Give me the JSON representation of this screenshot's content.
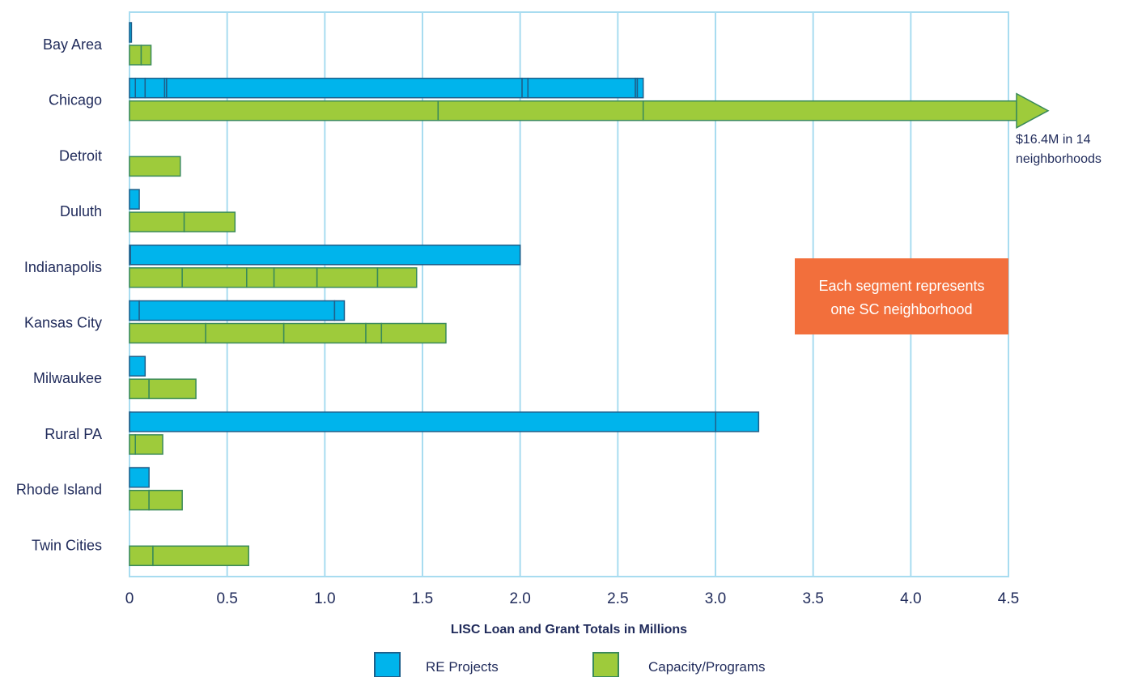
{
  "chart_data": {
    "type": "bar",
    "orientation": "horizontal",
    "stacked": true,
    "xlabel": "LISC Loan and Grant Totals in Millions",
    "xlim": [
      0,
      4.5
    ],
    "xticks": [
      "0",
      "0.5",
      "1.0",
      "1.5",
      "2.0",
      "2.5",
      "3.0",
      "3.5",
      "4.0",
      "4.5"
    ],
    "grid": "vertical",
    "categories": [
      "Bay Area",
      "Chicago",
      "Detroit",
      "Duluth",
      "Indianapolis",
      "Kansas City",
      "Milwaukee",
      "Rural PA",
      "Rhode Island",
      "Twin Cities"
    ],
    "series": [
      {
        "name": "RE Projects",
        "color": "#00b4ec",
        "segments": [
          [
            0.01
          ],
          [
            0.03,
            0.05,
            0.1,
            0.01,
            1.82,
            0.03,
            0.55,
            0.01,
            0.03
          ],
          [],
          [
            0.05
          ],
          [
            0.005,
            1.995
          ],
          [
            0.05,
            1.0,
            0.05
          ],
          [
            0.08
          ],
          [
            0.001,
            3.0,
            0.22
          ],
          [
            0.1
          ],
          []
        ]
      },
      {
        "name": "Capacity/Programs",
        "color": "#9ecb3b",
        "segments": [
          [
            0.06,
            0.05
          ],
          [
            1.58,
            1.05,
            13.77
          ],
          [
            0.26
          ],
          [
            0.28,
            0.26
          ],
          [
            0.27,
            0.33,
            0.14,
            0.22,
            0.31,
            0.2
          ],
          [
            0.39,
            0.4,
            0.42,
            0.08,
            0.33
          ],
          [
            0.1,
            0.24
          ],
          [
            0.03,
            0.14
          ],
          [
            0.1,
            0.17
          ],
          [
            0.12,
            0.49
          ]
        ]
      }
    ],
    "overflow_note": {
      "category": "Chicago",
      "series": "Capacity/Programs",
      "line1": "$16.4M in 14",
      "line2": "neighborhoods"
    },
    "callout": {
      "line1": "Each segment represents",
      "line2": "one SC neighborhood",
      "color": "#f26f3c"
    },
    "legend": {
      "placement": "bottom-center",
      "items": [
        "RE Projects",
        "Capacity/Programs"
      ]
    },
    "colors": {
      "grid": "#a8dcf0",
      "frame": "#a8dcf0",
      "text": "#1f2a5a",
      "blue_stroke": "#1f5f8a",
      "green_stroke": "#3a8a5a"
    }
  }
}
